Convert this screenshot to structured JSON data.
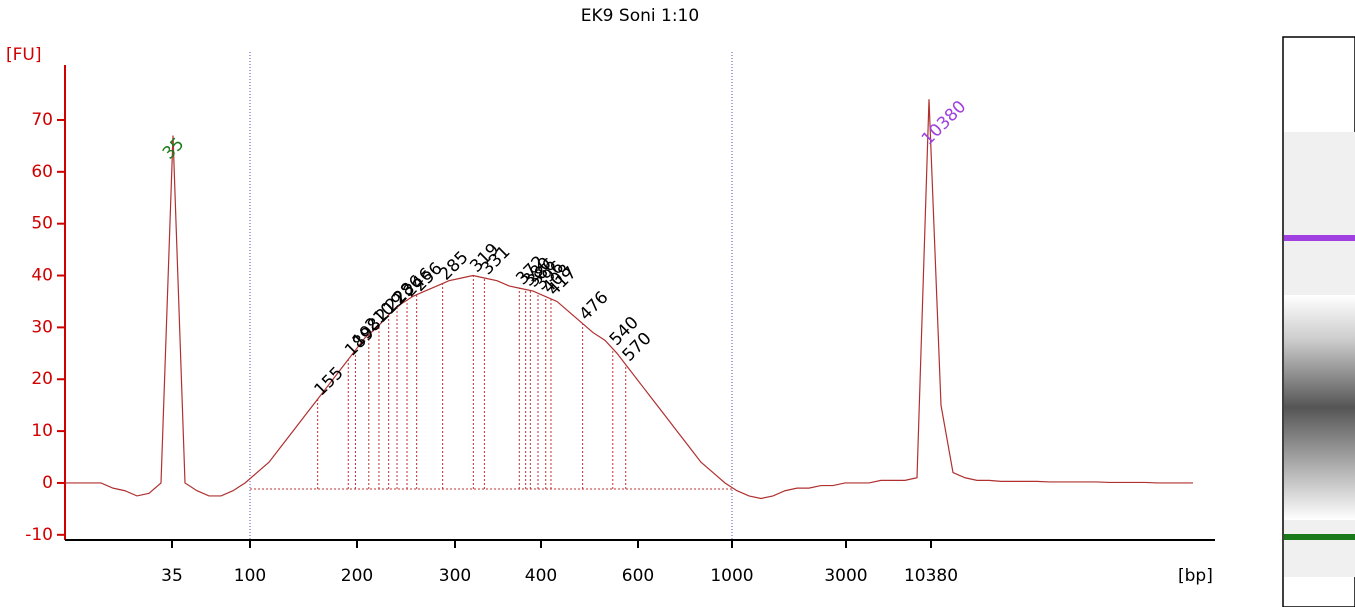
{
  "chart_data": {
    "type": "line",
    "title": "EK9 Soni 1:10",
    "y_label": "[FU]",
    "x_label": "[bp]",
    "ylim": [
      -11,
      80.6
    ],
    "yticks": [
      -10,
      0,
      10,
      20,
      30,
      40,
      50,
      60,
      70
    ],
    "xticks": [
      35,
      100,
      200,
      300,
      400,
      600,
      1000,
      3000,
      10380
    ],
    "color": "#b03030",
    "values": [
      0,
      0,
      0,
      0,
      -1,
      -1.5,
      -2.5,
      -2,
      0,
      67,
      0,
      -1.5,
      -2.5,
      -2.5,
      -1.5,
      0,
      2,
      4,
      7,
      10,
      13,
      16,
      19,
      22,
      25,
      28,
      30,
      32.5,
      34.5,
      36,
      37,
      38,
      39,
      39.5,
      40,
      39.5,
      39,
      38,
      37.5,
      37,
      36,
      35,
      33,
      31,
      29,
      27.5,
      25,
      22,
      19,
      16,
      13,
      10,
      7,
      4,
      2,
      0,
      -1.5,
      -2.5,
      -3,
      -2.5,
      -1.5,
      -1,
      -1,
      -0.5,
      -0.5,
      0,
      0,
      0,
      0.5,
      0.5,
      0.5,
      1,
      74,
      15,
      2,
      1,
      0.5,
      0.5,
      0.3,
      0.3,
      0.3,
      0.3,
      0.2,
      0.2,
      0.2,
      0.2,
      0.2,
      0.1,
      0.1,
      0.1,
      0.1,
      0,
      0,
      0,
      0
    ],
    "lower_marker": {
      "bp": 35,
      "color": "#1a7a1a"
    },
    "upper_marker": {
      "bp": 10380,
      "color": "#a040e0"
    },
    "region": [
      100,
      1000
    ],
    "peaks": [
      155,
      189,
      198,
      210,
      219,
      228,
      236,
      246,
      256,
      285,
      319,
      331,
      372,
      380,
      386,
      396,
      408,
      417,
      476,
      540,
      570
    ]
  }
}
